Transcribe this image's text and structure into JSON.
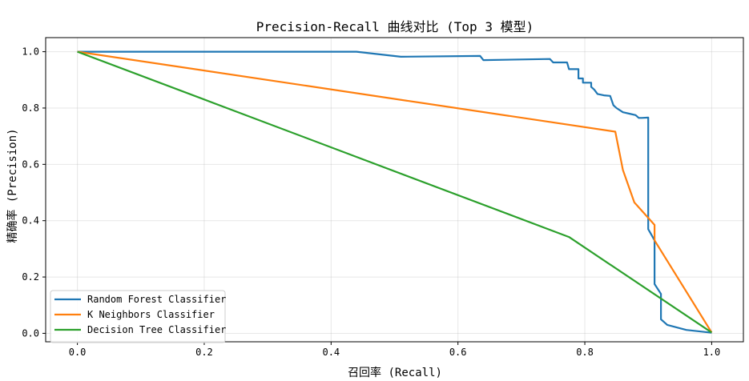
{
  "chart_data": {
    "type": "line",
    "title": "Precision-Recall 曲线对比 (Top 3 模型)",
    "xlabel": "召回率 (Recall)",
    "ylabel": "精确率 (Precision)",
    "xlim": [
      -0.05,
      1.05
    ],
    "ylim": [
      -0.03,
      1.05
    ],
    "xticks": [
      "0.0",
      "0.2",
      "0.4",
      "0.6",
      "0.8",
      "1.0"
    ],
    "yticks": [
      "0.0",
      "0.2",
      "0.4",
      "0.6",
      "0.8",
      "1.0"
    ],
    "grid": true,
    "legend_position": "lower-left",
    "series": [
      {
        "name": "Random Forest Classifier",
        "color": "#1f77b4",
        "x": [
          0.0,
          0.44,
          0.51,
          0.635,
          0.64,
          0.745,
          0.75,
          0.772,
          0.775,
          0.79,
          0.79,
          0.797,
          0.797,
          0.81,
          0.81,
          0.815,
          0.82,
          0.83,
          0.84,
          0.845,
          0.85,
          0.86,
          0.87,
          0.88,
          0.885,
          0.89,
          0.9,
          0.9,
          0.905,
          0.91,
          0.91,
          0.92,
          0.92,
          0.93,
          0.96,
          1.0
        ],
        "y": [
          1.0,
          1.0,
          0.982,
          0.985,
          0.97,
          0.974,
          0.962,
          0.962,
          0.938,
          0.938,
          0.905,
          0.905,
          0.89,
          0.89,
          0.875,
          0.865,
          0.85,
          0.845,
          0.843,
          0.81,
          0.8,
          0.785,
          0.78,
          0.775,
          0.765,
          0.765,
          0.766,
          0.37,
          0.35,
          0.33,
          0.175,
          0.14,
          0.05,
          0.03,
          0.012,
          0.002
        ]
      },
      {
        "name": "K Neighbors Classifier",
        "color": "#ff7f0e",
        "x": [
          0.0,
          0.848,
          0.86,
          0.878,
          0.91,
          0.91,
          1.0
        ],
        "y": [
          1.0,
          0.716,
          0.58,
          0.465,
          0.385,
          0.33,
          0.003
        ]
      },
      {
        "name": "Decision Tree Classifier",
        "color": "#2ca02c",
        "x": [
          0.0,
          0.775,
          1.0
        ],
        "y": [
          1.0,
          0.342,
          0.003
        ]
      }
    ]
  }
}
